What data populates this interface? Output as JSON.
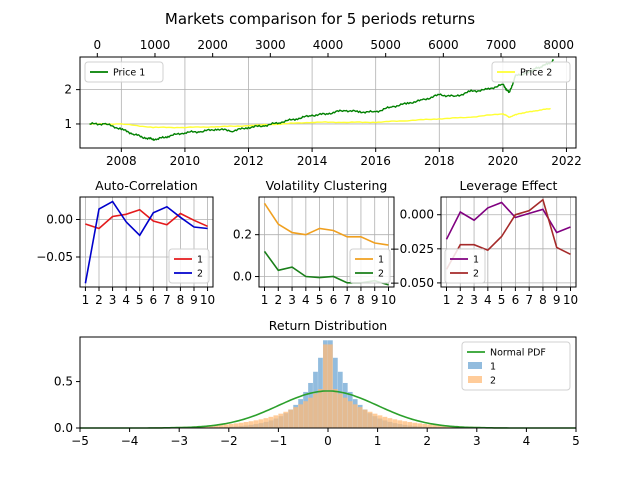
{
  "figure": {
    "title": "Markets comparison for 5 periods returns"
  },
  "colors": {
    "price1": "#008000",
    "price2": "#ffff33",
    "series_red": "#e41a1c",
    "series_blue": "#0000cc",
    "series_orange": "#f0a020",
    "series_green": "#1a7f1a",
    "series_purple": "#800080",
    "series_brown": "#a52a2a",
    "normal_pdf": "#2ca02c",
    "hist1": "#7fb0d8",
    "hist2": "#ffbb78",
    "grid": "#b0b0b0"
  },
  "chart_data": [
    {
      "id": "prices",
      "type": "line",
      "title": "",
      "x_bottom": {
        "range": [
          2006.7,
          2022.3
        ],
        "ticks": [
          "2008",
          "2010",
          "2012",
          "2014",
          "2016",
          "2018",
          "2020",
          "2022"
        ]
      },
      "x_top": {
        "range": [
          -300,
          8300
        ],
        "ticks": [
          "0",
          "1000",
          "2000",
          "3000",
          "4000",
          "5000",
          "6000",
          "7000",
          "8000"
        ]
      },
      "ylim": [
        0.3,
        2.95
      ],
      "yticks": [
        "1",
        "2"
      ],
      "grid": true,
      "series": [
        {
          "name": "Price 1",
          "legend": "top-left",
          "x": [
            2007.0,
            2007.5,
            2008.0,
            2008.4,
            2008.8,
            2009.1,
            2009.5,
            2010.0,
            2010.5,
            2011.0,
            2011.5,
            2012.0,
            2012.5,
            2013.0,
            2013.5,
            2014.0,
            2014.5,
            2015.0,
            2015.5,
            2016.0,
            2016.5,
            2017.0,
            2017.5,
            2018.0,
            2018.5,
            2019.0,
            2019.5,
            2020.0,
            2020.2,
            2020.4,
            2020.8,
            2021.0,
            2021.3,
            2021.6
          ],
          "y": [
            1.0,
            1.0,
            0.85,
            0.7,
            0.58,
            0.55,
            0.65,
            0.75,
            0.78,
            0.85,
            0.8,
            0.9,
            0.95,
            1.05,
            1.15,
            1.25,
            1.3,
            1.4,
            1.35,
            1.35,
            1.5,
            1.6,
            1.7,
            1.85,
            1.8,
            1.95,
            2.0,
            2.15,
            1.9,
            2.4,
            2.5,
            2.6,
            2.7,
            2.85
          ]
        },
        {
          "name": "Price 2",
          "legend": "top-right",
          "x": [
            2007.0,
            2008.0,
            2009.0,
            2010.0,
            2011.0,
            2012.0,
            2013.0,
            2014.0,
            2015.0,
            2016.0,
            2017.0,
            2018.0,
            2019.0,
            2020.0,
            2020.2,
            2020.5,
            2021.0,
            2021.5
          ],
          "y": [
            1.0,
            1.0,
            0.9,
            0.9,
            0.92,
            0.95,
            1.0,
            1.05,
            1.05,
            1.05,
            1.1,
            1.15,
            1.2,
            1.3,
            1.2,
            1.3,
            1.38,
            1.45
          ]
        }
      ]
    },
    {
      "id": "acf",
      "type": "line",
      "title": "Auto-Correlation",
      "x": [
        1,
        2,
        3,
        4,
        5,
        6,
        7,
        8,
        9,
        10
      ],
      "xlim": [
        0.6,
        10.4
      ],
      "ylim": [
        -0.09,
        0.03
      ],
      "yticks": [
        0.0,
        -0.05
      ],
      "ytick_labels": [
        "0.00",
        "−0.05"
      ],
      "xtick_labels": [
        "1",
        "2",
        "3",
        "4",
        "5",
        "6",
        "7",
        "8",
        "9",
        "10"
      ],
      "grid": true,
      "legend": "bottom-right",
      "series": [
        {
          "name": "1",
          "values": [
            -0.006,
            -0.012,
            0.004,
            0.007,
            0.013,
            -0.002,
            -0.007,
            0.008,
            -0.001,
            -0.009
          ]
        },
        {
          "name": "2",
          "values": [
            -0.085,
            0.014,
            0.024,
            -0.003,
            -0.021,
            0.009,
            0.017,
            0.003,
            -0.01,
            -0.012
          ]
        }
      ]
    },
    {
      "id": "vol",
      "type": "line",
      "title": "Volatility Clustering",
      "x": [
        1,
        2,
        3,
        4,
        5,
        6,
        7,
        8,
        9,
        10
      ],
      "xlim": [
        0.6,
        10.4
      ],
      "ylim": [
        -0.05,
        0.38
      ],
      "yticks": [
        0.0,
        0.2
      ],
      "ytick_labels": [
        "0.0",
        "0.2"
      ],
      "xtick_labels": [
        "1",
        "2",
        "3",
        "4",
        "5",
        "6",
        "7",
        "8",
        "9",
        "10"
      ],
      "grid": true,
      "legend": "bottom-right",
      "series": [
        {
          "name": "1",
          "values": [
            0.35,
            0.25,
            0.21,
            0.2,
            0.23,
            0.22,
            0.19,
            0.19,
            0.16,
            0.15
          ]
        },
        {
          "name": "2",
          "values": [
            0.12,
            0.03,
            0.045,
            0.0,
            -0.005,
            0.0,
            -0.03,
            -0.03,
            -0.02,
            -0.04
          ]
        }
      ]
    },
    {
      "id": "leverage",
      "type": "line",
      "title": "Leverage Effect",
      "x": [
        1,
        2,
        3,
        4,
        5,
        6,
        7,
        8,
        9,
        10
      ],
      "xlim": [
        0.6,
        10.4
      ],
      "ylim": [
        -0.053,
        0.013
      ],
      "yticks": [
        0.0,
        -0.025,
        -0.05
      ],
      "ytick_labels": [
        "0.000",
        "−0.025",
        "−0.050"
      ],
      "xtick_labels": [
        "1",
        "2",
        "3",
        "4",
        "5",
        "6",
        "7",
        "8",
        "9",
        "10"
      ],
      "grid": true,
      "legend": "bottom-left",
      "series": [
        {
          "name": "1",
          "values": [
            -0.018,
            0.002,
            -0.004,
            0.005,
            0.009,
            -0.002,
            0.001,
            0.004,
            -0.013,
            -0.009
          ]
        },
        {
          "name": "2",
          "values": [
            -0.04,
            -0.022,
            -0.022,
            -0.026,
            -0.016,
            0.0,
            0.003,
            0.011,
            -0.024,
            -0.029
          ]
        }
      ]
    },
    {
      "id": "distribution",
      "type": "bar",
      "title": "Return Distribution",
      "xlim": [
        -5,
        5
      ],
      "ylim": [
        0,
        0.98
      ],
      "xticks": [
        -5,
        -4,
        -3,
        -2,
        -1,
        0,
        1,
        2,
        3,
        4,
        5
      ],
      "xtick_labels": [
        "−5",
        "−4",
        "−3",
        "−2",
        "−1",
        "0",
        "1",
        "2",
        "3",
        "4",
        "5"
      ],
      "yticks": [
        0.0,
        0.5
      ],
      "ytick_labels": [
        "0.0",
        "0.5"
      ],
      "grid": false,
      "legend": "top-right",
      "normal_pdf": {
        "name": "Normal PDF",
        "mean": 0,
        "std": 1
      },
      "bin_width": 0.1,
      "series": [
        {
          "name": "1",
          "scale": 1.0
        },
        {
          "name": "2",
          "scale": 0.48
        }
      ]
    }
  ]
}
